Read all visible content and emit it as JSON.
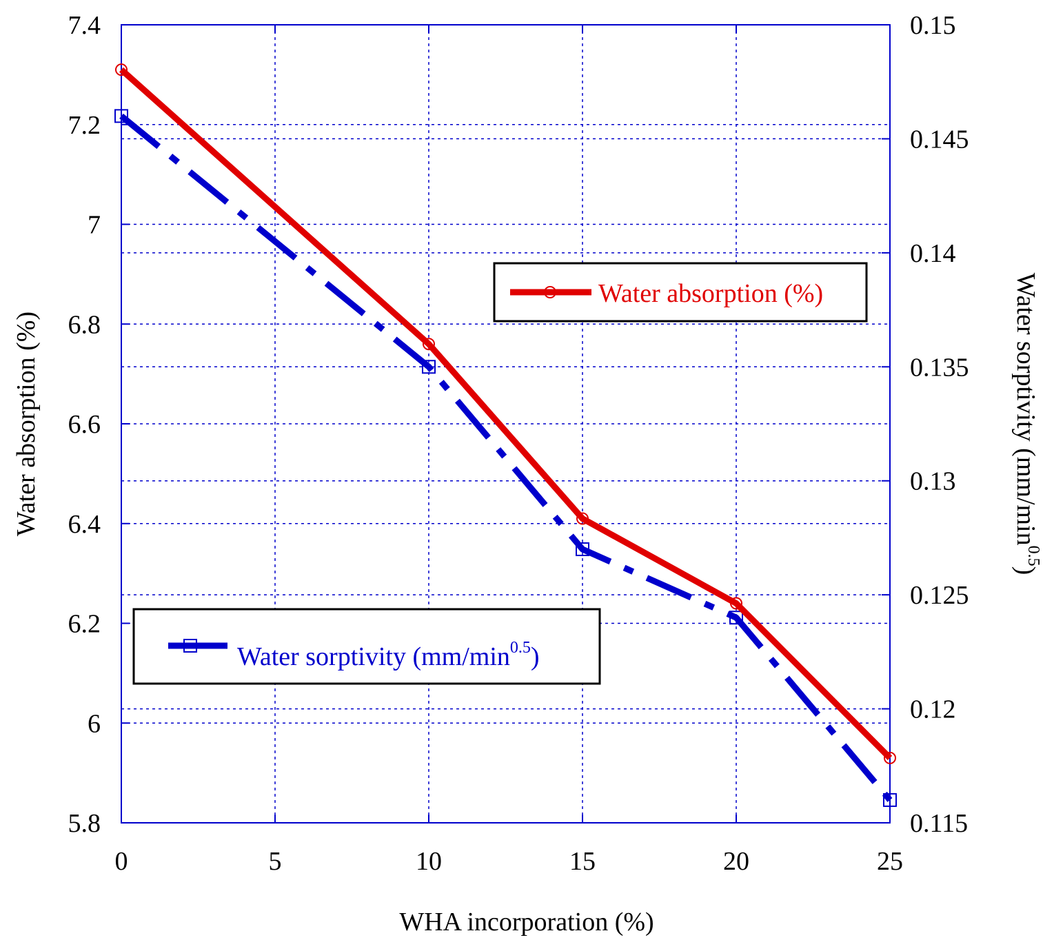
{
  "chart_data": {
    "type": "line",
    "title": "",
    "xlabel": "WHA incorporation (%)",
    "ylabel_left": "Water absorption (%)",
    "ylabel_right_main": "Water sorptivity (mm/min",
    "ylabel_right_sup": "0.5",
    "ylabel_right_end": ")",
    "x": [
      0,
      10,
      15,
      20,
      25
    ],
    "x_ticks": [
      "0",
      "5",
      "10",
      "15",
      "20",
      "25"
    ],
    "x_tick_values": [
      0,
      5,
      10,
      15,
      20,
      25
    ],
    "xlim": [
      0,
      25
    ],
    "ylim_left": [
      5.8,
      7.4
    ],
    "y_ticks_left": [
      "5.8",
      "6",
      "6.2",
      "6.4",
      "6.6",
      "6.8",
      "7",
      "7.2",
      "7.4"
    ],
    "y_tick_values_left": [
      5.8,
      6.0,
      6.2,
      6.4,
      6.6,
      6.8,
      7.0,
      7.2,
      7.4
    ],
    "ylim_right": [
      0.115,
      0.15
    ],
    "y_ticks_right": [
      "0.115",
      "0.12",
      "0.125",
      "0.13",
      "0.135",
      "0.14",
      "0.145",
      "0.15"
    ],
    "y_tick_values_right": [
      0.115,
      0.12,
      0.125,
      0.13,
      0.135,
      0.14,
      0.145,
      0.15
    ],
    "grid": true,
    "series": [
      {
        "name": "Water absorption (%)",
        "axis": "left",
        "values": [
          7.31,
          6.76,
          6.41,
          6.24,
          5.93
        ],
        "color": "#e00000",
        "marker": "circle",
        "line": "solid"
      },
      {
        "name": "Water sorptivity (mm/min",
        "name_sup": "0.5",
        "name_end": ")",
        "axis": "right",
        "values": [
          0.146,
          0.135,
          0.127,
          0.124,
          0.116
        ],
        "color": "#0000cc",
        "marker": "square",
        "line": "dash-dot"
      }
    ],
    "legend": [
      {
        "series": 0,
        "placement": "upper-right"
      },
      {
        "series": 1,
        "placement": "lower-left"
      }
    ],
    "colors": {
      "axis": "#0000cc",
      "grid": "#0000cc",
      "legend_border": "#000000"
    }
  }
}
